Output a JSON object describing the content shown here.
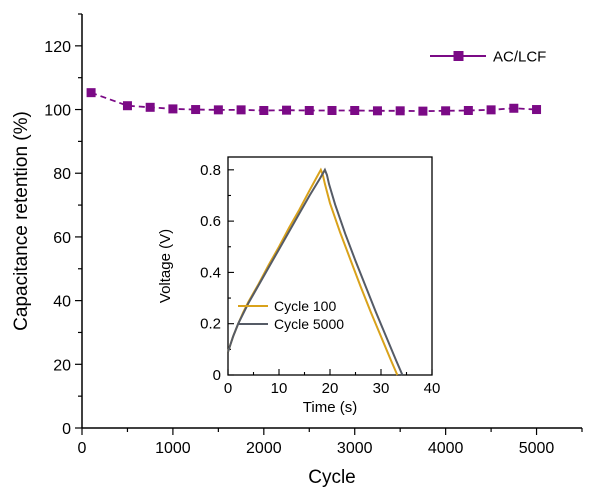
{
  "colors": {
    "main_series": "#7B0A86",
    "cycle100": "#D9A21B",
    "cycle5000": "#555B66"
  },
  "chart_data": [
    {
      "type": "line",
      "xlabel": "Cycle",
      "ylabel": "Capacitance retention (%)",
      "xlim": [
        0,
        5500
      ],
      "ylim": [
        0,
        130
      ],
      "x_ticks": [
        "0",
        "1000",
        "2000",
        "3000",
        "4000",
        "5000"
      ],
      "y_ticks": [
        "0",
        "20",
        "40",
        "60",
        "80",
        "100",
        "120"
      ],
      "legend_position": "top-right",
      "series": [
        {
          "name": "AC/LCF",
          "marker": "square",
          "x": [
            100,
            500,
            750,
            1000,
            1250,
            1500,
            1750,
            2000,
            2250,
            2500,
            2750,
            3000,
            3250,
            3500,
            3750,
            4000,
            4250,
            4500,
            4750,
            5000
          ],
          "y": [
            105.3,
            101.2,
            100.7,
            100.2,
            100.0,
            99.9,
            99.9,
            99.7,
            99.8,
            99.7,
            99.7,
            99.7,
            99.6,
            99.6,
            99.5,
            99.6,
            99.7,
            99.9,
            100.4,
            100.0
          ]
        }
      ]
    },
    {
      "type": "line",
      "position": "inset",
      "xlabel": "Time (s)",
      "ylabel": "Voltage (V)",
      "xlim": [
        0,
        40
      ],
      "ylim": [
        0,
        0.85
      ],
      "x_ticks": [
        "0",
        "10",
        "20",
        "30",
        "40"
      ],
      "y_ticks": [
        "0",
        "0.2",
        "0.4",
        "0.6",
        "0.8"
      ],
      "legend_position": "lower-left",
      "series": [
        {
          "name": "Cycle 100",
          "x": [
            0,
            0.5,
            1,
            2,
            3,
            4,
            6,
            8,
            10,
            12,
            14,
            16,
            17.5,
            18.2,
            18.6,
            19,
            20,
            22,
            24,
            26,
            28,
            30,
            32,
            33.2
          ],
          "y": [
            0.09,
            0.12,
            0.15,
            0.2,
            0.245,
            0.285,
            0.355,
            0.43,
            0.5,
            0.575,
            0.645,
            0.72,
            0.775,
            0.8,
            0.78,
            0.745,
            0.67,
            0.555,
            0.45,
            0.345,
            0.245,
            0.15,
            0.055,
            0.0
          ]
        },
        {
          "name": "Cycle 5000",
          "x": [
            0,
            0.5,
            1,
            2,
            3,
            4,
            6,
            8,
            10,
            12,
            14,
            16,
            18,
            19,
            19.4,
            19.8,
            21,
            23,
            25,
            27,
            29,
            31,
            33,
            34.2
          ],
          "y": [
            0.09,
            0.12,
            0.15,
            0.2,
            0.24,
            0.28,
            0.35,
            0.42,
            0.49,
            0.56,
            0.63,
            0.7,
            0.765,
            0.8,
            0.78,
            0.745,
            0.665,
            0.55,
            0.445,
            0.345,
            0.245,
            0.15,
            0.055,
            0.0
          ]
        }
      ]
    }
  ]
}
